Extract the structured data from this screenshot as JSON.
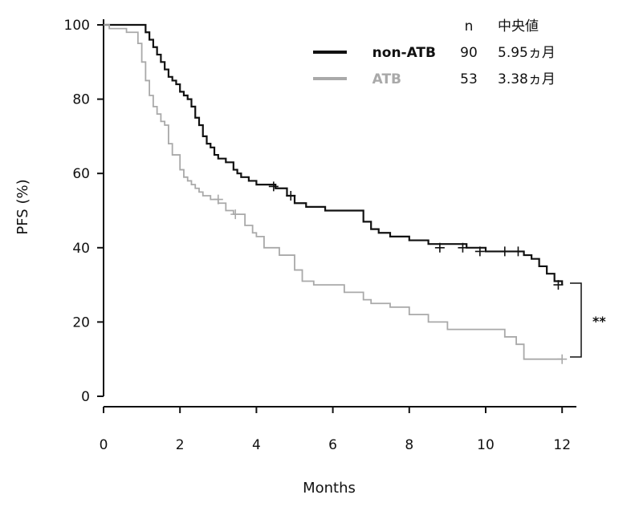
{
  "chart_data": {
    "type": "line",
    "step": true,
    "xlabel": "Months",
    "ylabel": "PFS (%)",
    "xlim": [
      0,
      12.5
    ],
    "ylim": [
      0,
      100
    ],
    "xticks": [
      0,
      2,
      4,
      6,
      8,
      10,
      12
    ],
    "yticks": [
      0,
      20,
      40,
      60,
      80,
      100
    ],
    "grid": false,
    "legend": {
      "placement": "top-right",
      "headers": {
        "n": "n",
        "median": "中央値"
      }
    },
    "series": [
      {
        "name": "non-ATB",
        "n": "90",
        "median": "5.95ヵ月",
        "color": "#111111",
        "x": [
          0,
          1.1,
          1.2,
          1.3,
          1.4,
          1.5,
          1.6,
          1.7,
          1.8,
          1.9,
          2.0,
          2.1,
          2.2,
          2.3,
          2.4,
          2.5,
          2.6,
          2.7,
          2.8,
          2.9,
          3.0,
          3.2,
          3.4,
          3.5,
          3.6,
          3.8,
          4.0,
          4.5,
          4.8,
          5.0,
          5.3,
          5.8,
          6.8,
          7.0,
          7.2,
          7.5,
          8.0,
          8.5,
          9.5,
          10.0,
          10.5,
          11.0,
          11.2,
          11.4,
          11.6,
          11.8,
          12.0
        ],
        "y": [
          100,
          98,
          96,
          94,
          92,
          90,
          88,
          86,
          85,
          84,
          82,
          81,
          80,
          78,
          75,
          73,
          70,
          68,
          67,
          65,
          64,
          63,
          61,
          60,
          59,
          58,
          57,
          56,
          54,
          52,
          51,
          50,
          47,
          45,
          44,
          43,
          42,
          41,
          40,
          39,
          39,
          38,
          37,
          35,
          33,
          31,
          30
        ],
        "censored_x": [
          4.45,
          4.9,
          8.8,
          9.4,
          9.85,
          10.5,
          10.85,
          11.9
        ],
        "censored_y": [
          56.5,
          54,
          40,
          40,
          39,
          39,
          39,
          30
        ]
      },
      {
        "name": "ATB",
        "n": "53",
        "median": "3.38ヵ月",
        "color": "#a9a9a9",
        "x": [
          0,
          0.15,
          0.6,
          0.9,
          1.0,
          1.1,
          1.2,
          1.3,
          1.4,
          1.5,
          1.6,
          1.7,
          1.8,
          2.0,
          2.1,
          2.2,
          2.3,
          2.4,
          2.5,
          2.6,
          2.8,
          3.0,
          3.2,
          3.4,
          3.7,
          3.9,
          4.0,
          4.2,
          4.6,
          5.0,
          5.2,
          5.5,
          6.3,
          6.8,
          7.0,
          7.5,
          8.0,
          8.5,
          9.0,
          10.5,
          10.8,
          11.0,
          12.0
        ],
        "y": [
          100,
          99,
          98,
          95,
          90,
          85,
          81,
          78,
          76,
          74,
          73,
          68,
          65,
          61,
          59,
          58,
          57,
          56,
          55,
          54,
          53,
          52,
          50,
          49,
          46,
          44,
          43,
          40,
          38,
          34,
          31,
          30,
          28,
          26,
          25,
          24,
          22,
          20,
          18,
          16,
          14,
          10,
          10
        ],
        "censored_x": [
          3.0,
          3.45,
          12.0
        ],
        "censored_y": [
          53,
          49,
          10
        ]
      }
    ],
    "annotations": [
      {
        "text": "**"
      }
    ]
  }
}
